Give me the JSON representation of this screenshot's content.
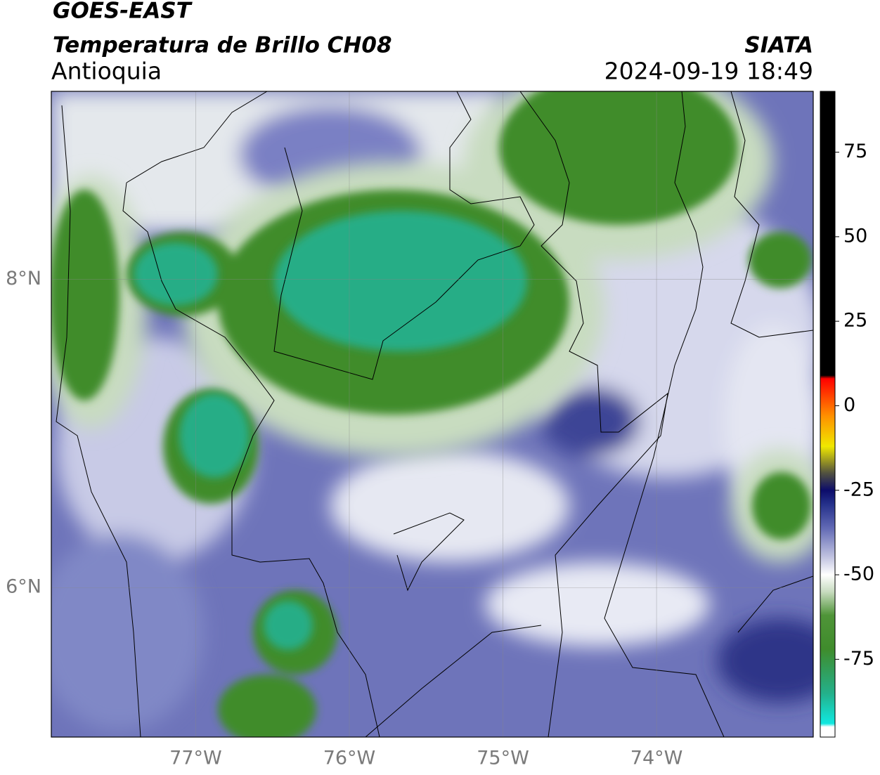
{
  "header": {
    "title": "GOES-EAST",
    "subtitle": "Temperatura de Brillo CH08",
    "region": "Antioquia",
    "source": "SIATA",
    "datetime": "2024-09-19 18:49"
  },
  "map": {
    "lonlim": [
      -77.94,
      -72.98
    ],
    "latlim": [
      5.03,
      9.22
    ],
    "lonticks": [
      {
        "value": -77,
        "label": "77°W"
      },
      {
        "value": -76,
        "label": "76°W"
      },
      {
        "value": -75,
        "label": "75°W"
      },
      {
        "value": -74,
        "label": "74°W"
      }
    ],
    "latticks": [
      {
        "value": 8,
        "label": "8°N"
      },
      {
        "value": 6,
        "label": "6°N"
      }
    ],
    "grid": true
  },
  "colorbar": {
    "lim": [
      -98,
      93
    ],
    "ticks": [
      75,
      50,
      25,
      0,
      -25,
      -50,
      -75
    ],
    "colormap": [
      {
        "value": -98,
        "color": "#ffffff"
      },
      {
        "value": -95,
        "color": "#ffffff"
      },
      {
        "value": -94,
        "color": "#10e8e0"
      },
      {
        "value": -85,
        "color": "#24b08a"
      },
      {
        "value": -72,
        "color": "#3f8c2c"
      },
      {
        "value": -62,
        "color": "#4f9438"
      },
      {
        "value": -55,
        "color": "#c8dcc0"
      },
      {
        "value": -50,
        "color": "#ffffff"
      },
      {
        "value": -45,
        "color": "#c4c6e2"
      },
      {
        "value": -36,
        "color": "#6068b4"
      },
      {
        "value": -29,
        "color": "#24308a"
      },
      {
        "value": -25,
        "color": "#0c0c6a"
      },
      {
        "value": -20,
        "color": "#505040"
      },
      {
        "value": -12,
        "color": "#f0e800"
      },
      {
        "value": -3,
        "color": "#ff9000"
      },
      {
        "value": 8,
        "color": "#ff0000"
      },
      {
        "value": 9,
        "color": "#000000"
      },
      {
        "value": 93,
        "color": "#000000"
      }
    ]
  }
}
